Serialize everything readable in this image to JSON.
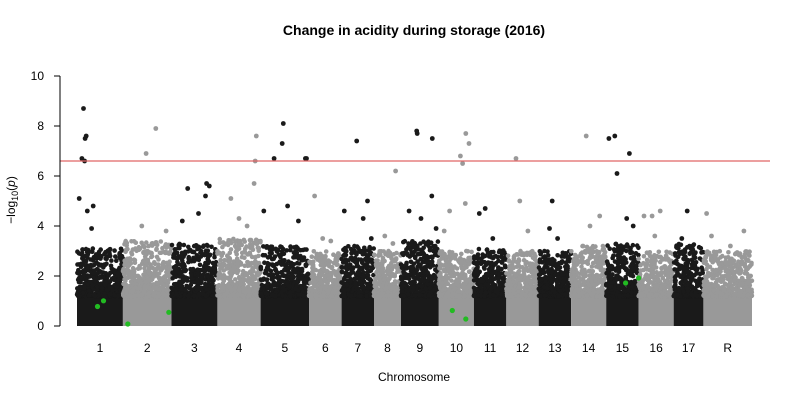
{
  "chart_data": {
    "type": "scatter",
    "subtype": "manhattan",
    "title": "Change in acidity during storage (2016)",
    "xlabel": "Chromosome",
    "ylabel_prefix": "−log",
    "ylabel_sub": "10",
    "ylabel_var": "p",
    "ylim": [
      0,
      10
    ],
    "yticks": [
      0,
      2,
      4,
      6,
      8,
      10
    ],
    "threshold": 6.6,
    "threshold_color": "#e06666",
    "colors": {
      "odd": "#1a1a1a",
      "even": "#999999",
      "highlight": "#22bb22"
    },
    "grid": false,
    "legend": "none",
    "chromosomes": [
      {
        "label": "1",
        "start": 0.0,
        "end": 8.5,
        "max_bg": 3.1,
        "top": [
          [
            1.2,
            8.7
          ],
          [
            1.5,
            7.5
          ],
          [
            1.7,
            7.6
          ],
          [
            0.9,
            6.7
          ],
          [
            1.4,
            6.6
          ],
          [
            0.4,
            5.1
          ],
          [
            3.0,
            4.8
          ],
          [
            1.9,
            4.6
          ],
          [
            2.7,
            3.9
          ]
        ]
      },
      {
        "label": "2",
        "start": 8.5,
        "end": 17.5,
        "max_bg": 3.4,
        "top": [
          [
            14.6,
            7.9
          ],
          [
            12.8,
            6.9
          ],
          [
            12.0,
            4.0
          ],
          [
            16.5,
            3.8
          ]
        ]
      },
      {
        "label": "3",
        "start": 17.5,
        "end": 26.0,
        "max_bg": 3.3,
        "top": [
          [
            24.0,
            5.7
          ],
          [
            24.5,
            5.6
          ],
          [
            20.5,
            5.5
          ],
          [
            23.8,
            5.2
          ],
          [
            22.5,
            4.5
          ],
          [
            19.5,
            4.2
          ]
        ]
      },
      {
        "label": "4",
        "start": 26.0,
        "end": 34.0,
        "max_bg": 3.5,
        "top": [
          [
            33.2,
            7.6
          ],
          [
            33.0,
            6.6
          ],
          [
            32.8,
            5.7
          ],
          [
            28.5,
            5.1
          ],
          [
            30.0,
            4.3
          ],
          [
            31.5,
            4.0
          ]
        ]
      },
      {
        "label": "5",
        "start": 34.0,
        "end": 43.0,
        "max_bg": 3.2,
        "top": [
          [
            38.2,
            8.1
          ],
          [
            42.3,
            6.7
          ],
          [
            42.5,
            6.7
          ],
          [
            38.0,
            7.3
          ],
          [
            36.5,
            6.7
          ],
          [
            34.6,
            4.6
          ],
          [
            39.0,
            4.8
          ],
          [
            41.0,
            4.2
          ]
        ]
      },
      {
        "label": "6",
        "start": 43.0,
        "end": 49.0,
        "max_bg": 3.0,
        "top": [
          [
            44.0,
            5.2
          ],
          [
            45.5,
            3.5
          ],
          [
            47.0,
            3.4
          ]
        ]
      },
      {
        "label": "7",
        "start": 49.0,
        "end": 55.0,
        "max_bg": 3.2,
        "top": [
          [
            51.8,
            7.4
          ],
          [
            53.8,
            5.0
          ],
          [
            49.5,
            4.6
          ],
          [
            53.0,
            4.3
          ],
          [
            54.5,
            3.5
          ]
        ]
      },
      {
        "label": "8",
        "start": 55.0,
        "end": 60.0,
        "max_bg": 3.0,
        "top": [
          [
            59.0,
            6.2
          ],
          [
            57.0,
            3.6
          ],
          [
            58.5,
            3.3
          ]
        ]
      },
      {
        "label": "9",
        "start": 60.0,
        "end": 67.0,
        "max_bg": 3.4,
        "top": [
          [
            62.9,
            7.8
          ],
          [
            63.0,
            7.7
          ],
          [
            65.8,
            7.5
          ],
          [
            65.7,
            5.2
          ],
          [
            61.5,
            4.6
          ],
          [
            63.7,
            4.3
          ],
          [
            66.5,
            3.9
          ]
        ]
      },
      {
        "label": "10",
        "start": 67.0,
        "end": 73.5,
        "max_bg": 3.0,
        "top": [
          [
            72.0,
            7.7
          ],
          [
            72.6,
            7.3
          ],
          [
            71.0,
            6.8
          ],
          [
            71.4,
            6.5
          ],
          [
            71.9,
            4.9
          ],
          [
            69.0,
            4.6
          ],
          [
            68.0,
            3.8
          ]
        ]
      },
      {
        "label": "11",
        "start": 73.5,
        "end": 79.5,
        "max_bg": 3.1,
        "top": [
          [
            75.6,
            4.7
          ],
          [
            74.5,
            4.5
          ],
          [
            77.0,
            3.5
          ]
        ]
      },
      {
        "label": "12",
        "start": 79.5,
        "end": 85.5,
        "max_bg": 3.0,
        "top": [
          [
            81.3,
            6.7
          ],
          [
            82.0,
            5.0
          ],
          [
            83.5,
            3.8
          ]
        ]
      },
      {
        "label": "13",
        "start": 85.5,
        "end": 91.5,
        "max_bg": 3.0,
        "top": [
          [
            88.0,
            5.0
          ],
          [
            87.5,
            3.9
          ],
          [
            89.0,
            3.5
          ]
        ]
      },
      {
        "label": "14",
        "start": 91.5,
        "end": 98.0,
        "max_bg": 3.2,
        "top": [
          [
            94.3,
            7.6
          ],
          [
            96.8,
            4.4
          ],
          [
            95.0,
            4.0
          ]
        ]
      },
      {
        "label": "15",
        "start": 98.0,
        "end": 104.0,
        "max_bg": 3.3,
        "top": [
          [
            99.6,
            7.6
          ],
          [
            100.0,
            6.1
          ],
          [
            102.3,
            6.9
          ],
          [
            101.8,
            4.3
          ],
          [
            103.0,
            4.0
          ],
          [
            98.5,
            7.5
          ]
        ]
      },
      {
        "label": "16",
        "start": 104.0,
        "end": 110.5,
        "max_bg": 3.0,
        "top": [
          [
            105.0,
            4.4
          ],
          [
            106.5,
            4.4
          ],
          [
            108.0,
            4.6
          ],
          [
            107.0,
            3.6
          ]
        ]
      },
      {
        "label": "17",
        "start": 110.5,
        "end": 116.0,
        "max_bg": 3.3,
        "top": [
          [
            113.0,
            4.6
          ],
          [
            112.0,
            3.5
          ],
          [
            114.0,
            3.2
          ]
        ]
      },
      {
        "label": "R",
        "start": 116.0,
        "end": 125.0,
        "max_bg": 3.0,
        "top": [
          [
            116.6,
            4.5
          ],
          [
            117.5,
            3.6
          ],
          [
            123.5,
            3.8
          ],
          [
            121.0,
            3.2
          ]
        ]
      }
    ],
    "highlight_points": [
      [
        3.8,
        0.78
      ],
      [
        4.9,
        1.01
      ],
      [
        9.4,
        0.08
      ],
      [
        17.0,
        0.55
      ],
      [
        69.5,
        0.62
      ],
      [
        72.0,
        0.28
      ],
      [
        101.6,
        1.72
      ],
      [
        104.0,
        1.92
      ]
    ]
  }
}
